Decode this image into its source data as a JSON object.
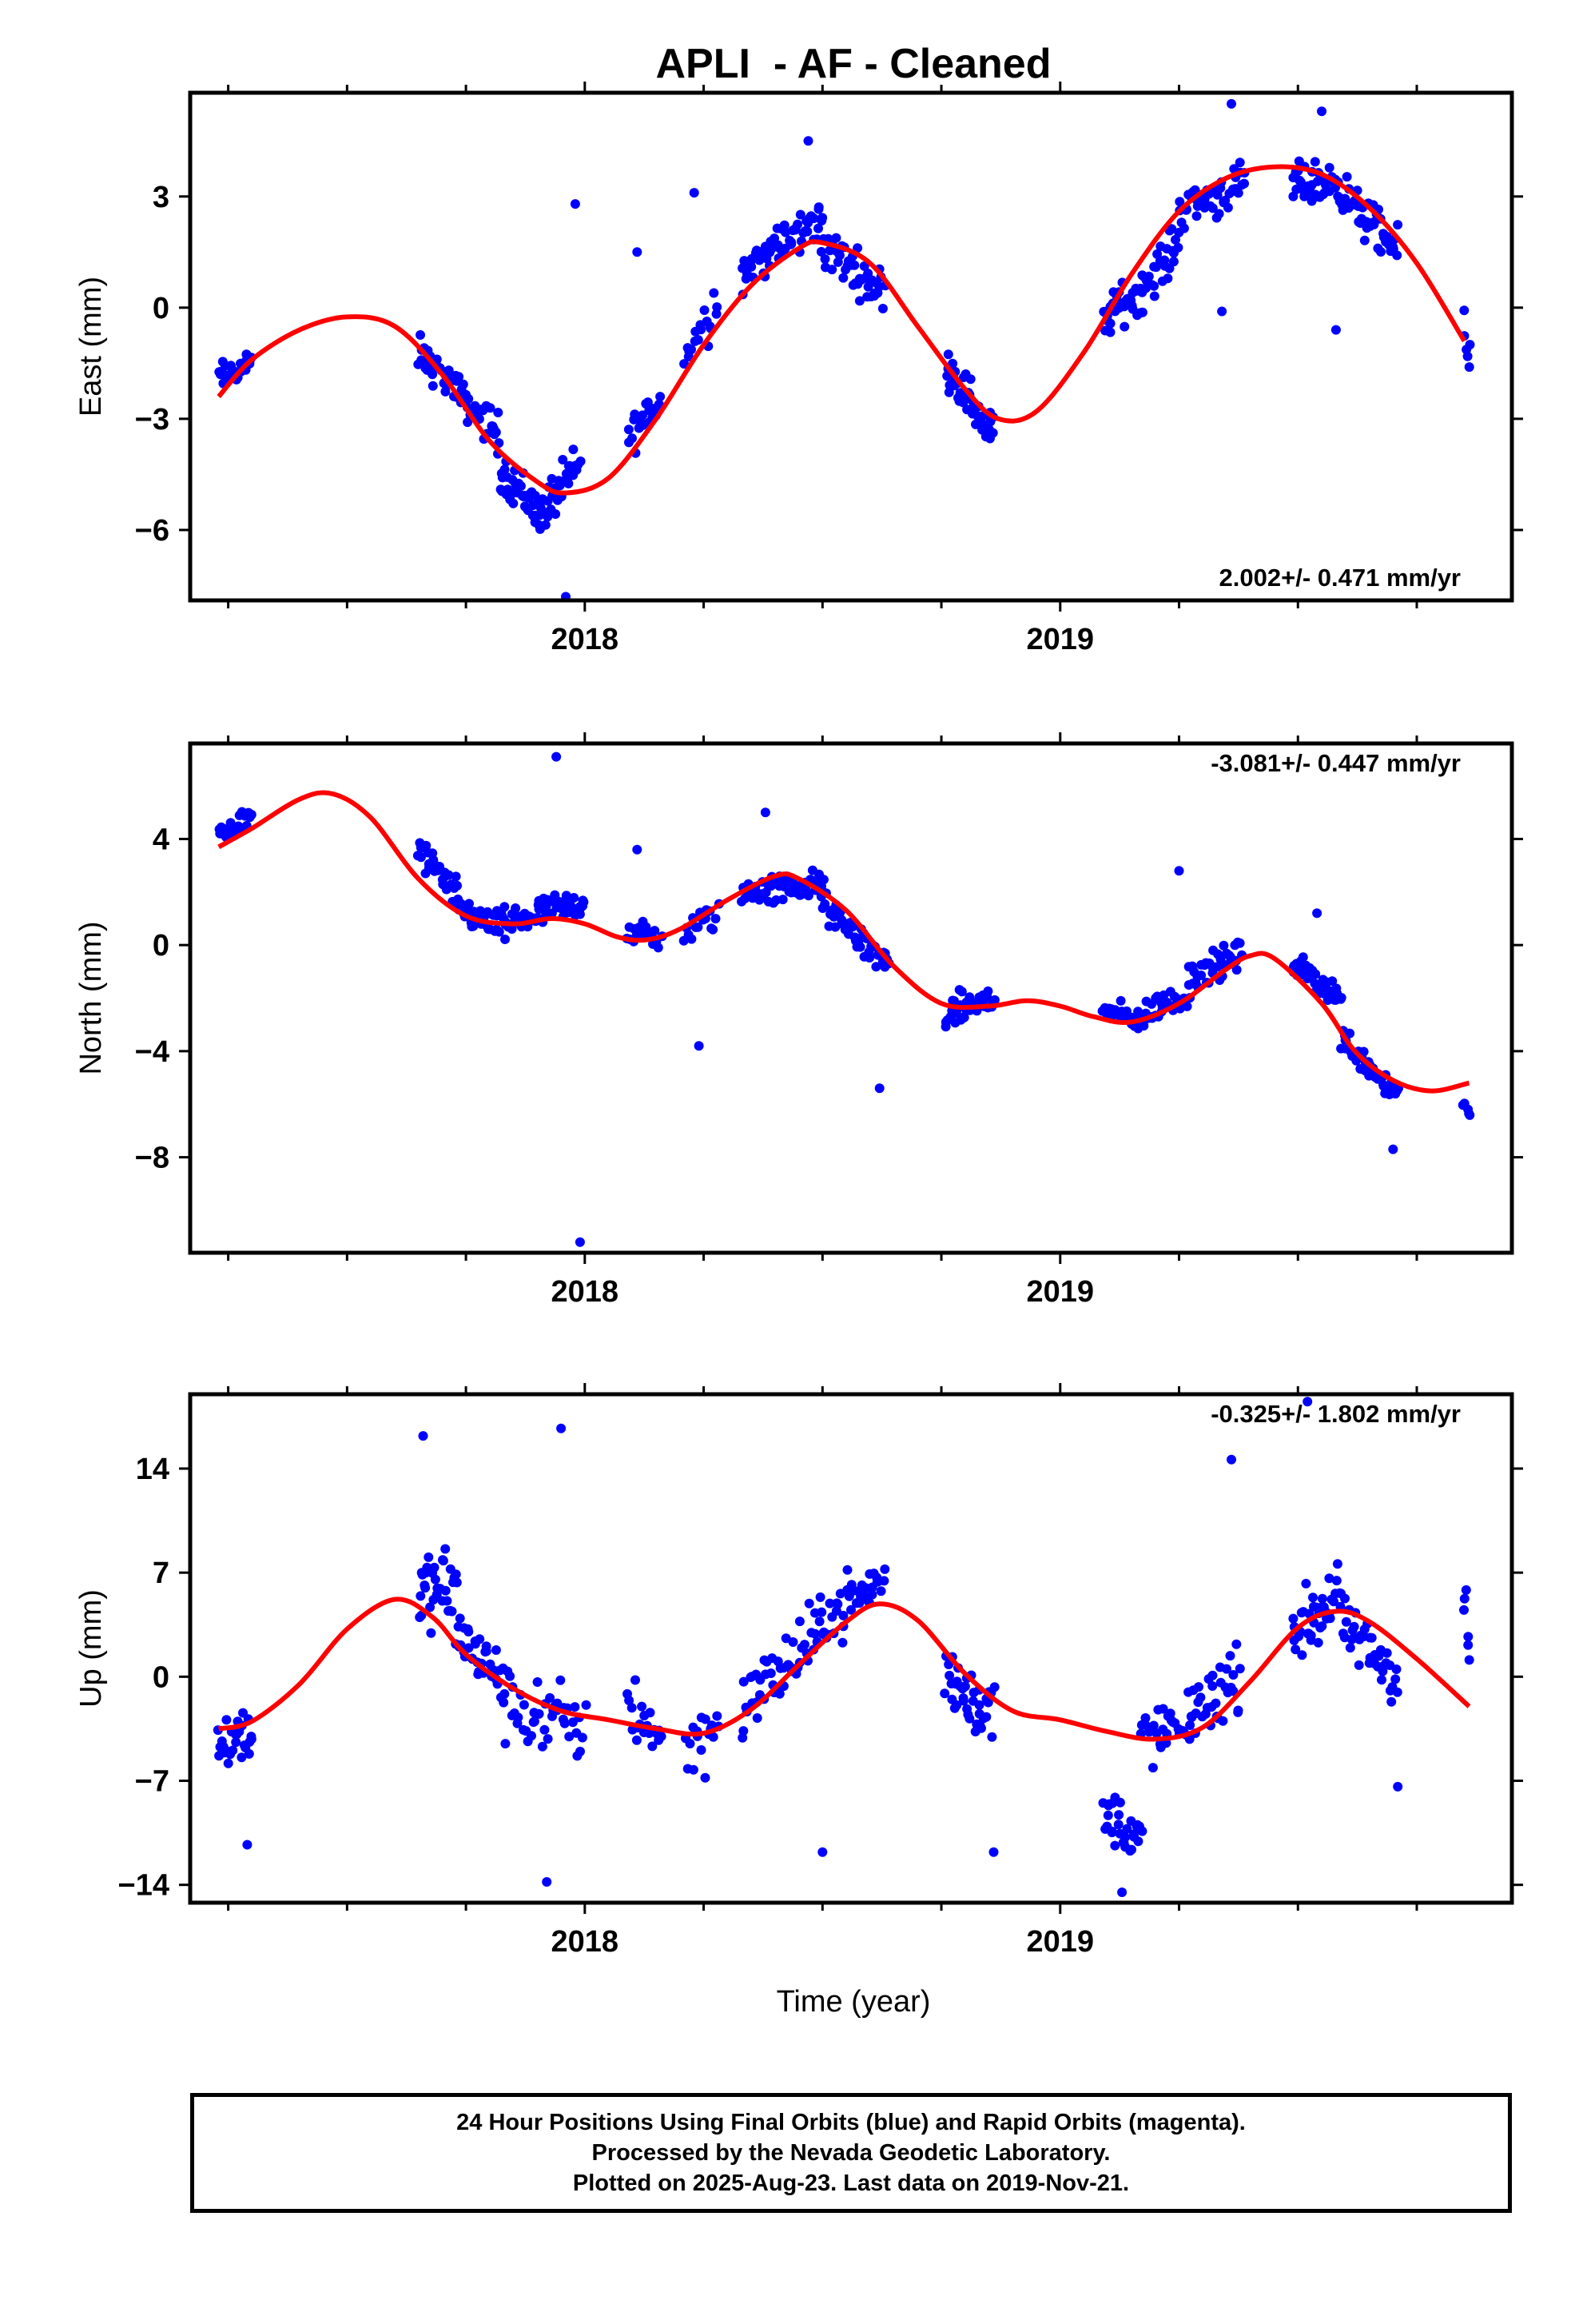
{
  "chart_data": {
    "type": "scatter",
    "title": "APLI  - AF - Cleaned",
    "xlabel": "Time (year)",
    "x_tick_labels": [
      "2018",
      "2019"
    ],
    "xlim": [
      2017.17,
      2019.95
    ],
    "colors": {
      "points": "#0000ff",
      "fit": "#ff0000",
      "frame": "#000000"
    },
    "legend_placement": "none",
    "grid": false,
    "panels": [
      {
        "name": "east",
        "ylabel": "East (mm)",
        "ylim": [
          -7.9,
          5.8
        ],
        "yticks": [
          3,
          0,
          -3,
          -6
        ],
        "ytick_labels": [
          "3",
          "0",
          "−3",
          "−6"
        ],
        "rate_label": "2.002+/- 0.471 mm/yr",
        "rate_position": "bottom-right",
        "fit_curve": {
          "x": [
            2017.23,
            2017.3,
            2017.4,
            2017.5,
            2017.6,
            2017.7,
            2017.8,
            2017.9,
            2017.96,
            2018.05,
            2018.15,
            2018.25,
            2018.35,
            2018.45,
            2018.5,
            2018.6,
            2018.7,
            2018.8,
            2018.87,
            2018.95,
            2019.05,
            2019.15,
            2019.25,
            2019.35,
            2019.45,
            2019.55,
            2019.65,
            2019.75,
            2019.85
          ],
          "y": [
            -2.4,
            -1.4,
            -0.6,
            -0.25,
            -0.5,
            -1.8,
            -3.6,
            -4.7,
            -5.0,
            -4.6,
            -3.0,
            -1.0,
            0.6,
            1.6,
            1.75,
            1.2,
            -0.5,
            -2.2,
            -3.0,
            -2.8,
            -1.2,
            0.9,
            2.6,
            3.5,
            3.8,
            3.6,
            2.7,
            1.2,
            -0.9
          ]
        },
        "clusters": [
          {
            "x0": 2017.23,
            "x1": 2017.3,
            "y_start": -1.9,
            "y_end": -1.5,
            "spread": 0.6,
            "n": 28
          },
          {
            "x0": 2017.65,
            "x1": 2017.73,
            "y_start": -1.2,
            "y_end": -2.2,
            "spread": 0.7,
            "n": 30
          },
          {
            "x0": 2017.73,
            "x1": 2017.82,
            "y_start": -2.3,
            "y_end": -3.4,
            "spread": 0.8,
            "n": 30
          },
          {
            "x0": 2017.82,
            "x1": 2017.91,
            "y_start": -4.3,
            "y_end": -5.6,
            "spread": 0.9,
            "n": 40
          },
          {
            "x0": 2017.91,
            "x1": 2017.99,
            "y_start": -5.5,
            "y_end": -4.2,
            "spread": 0.9,
            "n": 34
          },
          {
            "x0": 2018.09,
            "x1": 2018.16,
            "y_start": -3.5,
            "y_end": -2.5,
            "spread": 0.9,
            "n": 20
          },
          {
            "x0": 2018.21,
            "x1": 2018.28,
            "y_start": -1.3,
            "y_end": 0.2,
            "spread": 1.0,
            "n": 18
          },
          {
            "x0": 2018.33,
            "x1": 2018.5,
            "y_start": 1.0,
            "y_end": 2.4,
            "spread": 0.9,
            "n": 60
          },
          {
            "x0": 2018.5,
            "x1": 2018.63,
            "y_start": 1.7,
            "y_end": 0.4,
            "spread": 0.9,
            "n": 46
          },
          {
            "x0": 2018.76,
            "x1": 2018.86,
            "y_start": -1.5,
            "y_end": -3.5,
            "spread": 0.9,
            "n": 44
          },
          {
            "x0": 2019.09,
            "x1": 2019.17,
            "y_start": -0.3,
            "y_end": 0.5,
            "spread": 0.9,
            "n": 32
          },
          {
            "x0": 2019.17,
            "x1": 2019.25,
            "y_start": 0.4,
            "y_end": 1.8,
            "spread": 0.9,
            "n": 30
          },
          {
            "x0": 2019.25,
            "x1": 2019.39,
            "y_start": 2.7,
            "y_end": 3.3,
            "spread": 0.9,
            "n": 46
          },
          {
            "x0": 2019.49,
            "x1": 2019.59,
            "y_start": 3.3,
            "y_end": 3.4,
            "spread": 0.9,
            "n": 44
          },
          {
            "x0": 2019.59,
            "x1": 2019.71,
            "y_start": 3.1,
            "y_end": 1.5,
            "spread": 0.9,
            "n": 44
          },
          {
            "x0": 2019.85,
            "x1": 2019.86,
            "y_start": -0.8,
            "y_end": -1.2,
            "spread": 1.3,
            "n": 6
          }
        ],
        "extra_points": [
          [
            2017.98,
            2.8
          ],
          [
            2017.96,
            -7.8
          ],
          [
            2018.11,
            1.5
          ],
          [
            2018.23,
            3.1
          ],
          [
            2018.47,
            4.5
          ],
          [
            2019.36,
            5.5
          ],
          [
            2019.55,
            5.3
          ],
          [
            2019.58,
            -0.6
          ],
          [
            2019.34,
            -0.1
          ]
        ]
      },
      {
        "name": "north",
        "ylabel": "North (mm)",
        "ylim": [
          -11.6,
          7.6
        ],
        "yticks": [
          4,
          0,
          -4,
          -8
        ],
        "ytick_labels": [
          "4",
          "0",
          "−4",
          "−8"
        ],
        "rate_label": "-3.081+/- 0.447 mm/yr",
        "rate_position": "top-right",
        "fit_curve": {
          "x": [
            2017.23,
            2017.3,
            2017.4,
            2017.47,
            2017.55,
            2017.65,
            2017.75,
            2017.85,
            2017.93,
            2018.0,
            2018.07,
            2018.13,
            2018.2,
            2018.3,
            2018.4,
            2018.45,
            2018.55,
            2018.65,
            2018.75,
            2018.85,
            2018.93,
            2019.0,
            2019.07,
            2019.15,
            2019.25,
            2019.35,
            2019.4,
            2019.45,
            2019.55,
            2019.62,
            2019.7,
            2019.78,
            2019.86
          ],
          "y": [
            3.7,
            4.4,
            5.5,
            5.7,
            4.8,
            2.5,
            1.1,
            0.8,
            1.0,
            0.8,
            0.3,
            0.2,
            0.6,
            1.7,
            2.6,
            2.5,
            1.3,
            -0.8,
            -2.2,
            -2.3,
            -2.1,
            -2.3,
            -2.7,
            -2.9,
            -2.2,
            -0.9,
            -0.4,
            -0.5,
            -2.2,
            -4.0,
            -5.1,
            -5.5,
            -5.2
          ]
        },
        "clusters": [
          {
            "x0": 2017.23,
            "x1": 2017.3,
            "y_start": 4.2,
            "y_end": 4.8,
            "spread": 0.7,
            "n": 30
          },
          {
            "x0": 2017.65,
            "x1": 2017.73,
            "y_start": 3.6,
            "y_end": 1.8,
            "spread": 1.0,
            "n": 30
          },
          {
            "x0": 2017.73,
            "x1": 2017.83,
            "y_start": 1.4,
            "y_end": 0.6,
            "spread": 0.9,
            "n": 34
          },
          {
            "x0": 2017.83,
            "x1": 2018.0,
            "y_start": 0.8,
            "y_end": 1.6,
            "spread": 0.9,
            "n": 70
          },
          {
            "x0": 2018.09,
            "x1": 2018.16,
            "y_start": 0.5,
            "y_end": 0.2,
            "spread": 0.8,
            "n": 20
          },
          {
            "x0": 2018.21,
            "x1": 2018.28,
            "y_start": 0.4,
            "y_end": 1.2,
            "spread": 0.9,
            "n": 16
          },
          {
            "x0": 2018.33,
            "x1": 2018.5,
            "y_start": 2.0,
            "y_end": 2.3,
            "spread": 0.9,
            "n": 60
          },
          {
            "x0": 2018.5,
            "x1": 2018.64,
            "y_start": 1.5,
            "y_end": -0.8,
            "spread": 0.9,
            "n": 46
          },
          {
            "x0": 2018.76,
            "x1": 2018.86,
            "y_start": -2.6,
            "y_end": -2.0,
            "spread": 0.9,
            "n": 44
          },
          {
            "x0": 2019.09,
            "x1": 2019.18,
            "y_start": -2.5,
            "y_end": -2.9,
            "spread": 0.7,
            "n": 30
          },
          {
            "x0": 2019.18,
            "x1": 2019.27,
            "y_start": -2.5,
            "y_end": -1.9,
            "spread": 0.8,
            "n": 30
          },
          {
            "x0": 2019.27,
            "x1": 2019.38,
            "y_start": -1.2,
            "y_end": -0.4,
            "spread": 0.9,
            "n": 40
          },
          {
            "x0": 2019.49,
            "x1": 2019.59,
            "y_start": -0.7,
            "y_end": -2.0,
            "spread": 0.8,
            "n": 40
          },
          {
            "x0": 2019.59,
            "x1": 2019.71,
            "y_start": -3.5,
            "y_end": -5.6,
            "spread": 0.8,
            "n": 44
          },
          {
            "x0": 2019.85,
            "x1": 2019.86,
            "y_start": -5.8,
            "y_end": -6.5,
            "spread": 0.6,
            "n": 5
          }
        ],
        "extra_points": [
          [
            2017.94,
            7.1
          ],
          [
            2017.99,
            -11.2
          ],
          [
            2018.11,
            3.6
          ],
          [
            2018.24,
            -3.8
          ],
          [
            2018.62,
            -5.4
          ],
          [
            2018.38,
            5.0
          ],
          [
            2019.25,
            2.8
          ],
          [
            2019.54,
            1.2
          ],
          [
            2019.7,
            -7.7
          ]
        ]
      },
      {
        "name": "up",
        "ylabel": "Up (mm)",
        "ylim": [
          -15.2,
          19.0
        ],
        "yticks": [
          14,
          7,
          0,
          -7,
          -14
        ],
        "ytick_labels": [
          "14",
          "7",
          "0",
          "−7",
          "−14"
        ],
        "rate_label": "-0.325+/- 1.802 mm/yr",
        "rate_position": "top-right",
        "fit_curve": {
          "x": [
            2017.23,
            2017.3,
            2017.4,
            2017.5,
            2017.6,
            2017.68,
            2017.75,
            2017.85,
            2017.95,
            2018.05,
            2018.15,
            2018.25,
            2018.35,
            2018.45,
            2018.55,
            2018.62,
            2018.7,
            2018.8,
            2018.9,
            2019.0,
            2019.1,
            2019.2,
            2019.3,
            2019.4,
            2019.5,
            2019.58,
            2019.65,
            2019.75,
            2019.86
          ],
          "y": [
            -3.5,
            -3.0,
            -0.5,
            3.2,
            5.2,
            4.0,
            1.5,
            -0.8,
            -2.3,
            -2.9,
            -3.5,
            -3.8,
            -2.2,
            0.8,
            3.7,
            4.9,
            3.8,
            0.2,
            -2.3,
            -2.9,
            -3.7,
            -4.2,
            -3.4,
            -0.3,
            3.3,
            4.4,
            3.7,
            1.2,
            -2.0
          ]
        },
        "clusters": [
          {
            "x0": 2017.23,
            "x1": 2017.3,
            "y_start": -4.5,
            "y_end": -3.5,
            "spread": 3.2,
            "n": 28
          },
          {
            "x0": 2017.65,
            "x1": 2017.73,
            "y_start": 5.5,
            "y_end": 6.0,
            "spread": 4.0,
            "n": 34
          },
          {
            "x0": 2017.73,
            "x1": 2017.83,
            "y_start": 3.0,
            "y_end": -0.5,
            "spread": 3.2,
            "n": 36
          },
          {
            "x0": 2017.83,
            "x1": 2018.0,
            "y_start": -2.0,
            "y_end": -3.5,
            "spread": 4.0,
            "n": 44
          },
          {
            "x0": 2018.09,
            "x1": 2018.16,
            "y_start": -1.5,
            "y_end": -4.0,
            "spread": 4.0,
            "n": 20
          },
          {
            "x0": 2018.21,
            "x1": 2018.28,
            "y_start": -5.0,
            "y_end": -3.0,
            "spread": 4.0,
            "n": 18
          },
          {
            "x0": 2018.33,
            "x1": 2018.5,
            "y_start": -2.0,
            "y_end": 3.0,
            "spread": 3.6,
            "n": 50
          },
          {
            "x0": 2018.5,
            "x1": 2018.63,
            "y_start": 4.0,
            "y_end": 6.5,
            "spread": 3.0,
            "n": 40
          },
          {
            "x0": 2018.76,
            "x1": 2018.86,
            "y_start": 0.0,
            "y_end": -2.5,
            "spread": 3.6,
            "n": 40
          },
          {
            "x0": 2019.09,
            "x1": 2019.17,
            "y_start": -9.0,
            "y_end": -11.0,
            "spread": 3.0,
            "n": 30
          },
          {
            "x0": 2019.17,
            "x1": 2019.27,
            "y_start": -4.0,
            "y_end": -3.5,
            "spread": 3.2,
            "n": 30
          },
          {
            "x0": 2019.27,
            "x1": 2019.38,
            "y_start": -2.5,
            "y_end": 0.0,
            "spread": 3.2,
            "n": 34
          },
          {
            "x0": 2019.49,
            "x1": 2019.59,
            "y_start": 3.0,
            "y_end": 5.5,
            "spread": 3.5,
            "n": 40
          },
          {
            "x0": 2019.59,
            "x1": 2019.71,
            "y_start": 3.5,
            "y_end": 0.0,
            "spread": 3.0,
            "n": 40
          },
          {
            "x0": 2019.85,
            "x1": 2019.86,
            "y_start": 6.0,
            "y_end": 2.0,
            "spread": 4.0,
            "n": 6
          }
        ],
        "extra_points": [
          [
            2017.66,
            16.2
          ],
          [
            2017.95,
            16.7
          ],
          [
            2017.92,
            -13.8
          ],
          [
            2019.52,
            18.5
          ],
          [
            2019.36,
            14.6
          ],
          [
            2019.13,
            -14.5
          ],
          [
            2018.5,
            -11.8
          ],
          [
            2018.86,
            -11.8
          ],
          [
            2017.29,
            -11.3
          ],
          [
            2019.71,
            -7.4
          ]
        ]
      }
    ]
  },
  "caption": {
    "line1": "24 Hour Positions Using Final Orbits (blue) and Rapid Orbits (magenta).",
    "line2": "Processed by the Nevada Geodetic Laboratory.",
    "line3": "Plotted on 2025-Aug-23. Last data on 2019-Nov-21."
  }
}
